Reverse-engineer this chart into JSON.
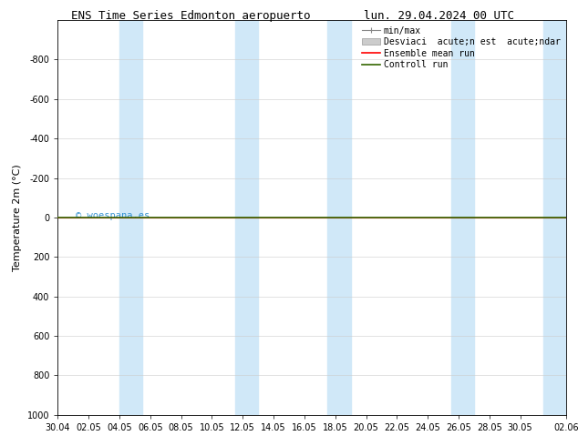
{
  "title_left": "ENS Time Series Edmonton aeropuerto",
  "title_right": "lun. 29.04.2024 00 UTC",
  "ylabel": "Temperature 2m (°C)",
  "ylim_bottom": 1000,
  "ylim_top": -1000,
  "yticks": [
    -800,
    -600,
    -400,
    -200,
    0,
    200,
    400,
    600,
    800,
    1000
  ],
  "xlim_start": 0,
  "xlim_end": 33,
  "xtick_labels": [
    "30.04",
    "02.05",
    "04.05",
    "06.05",
    "08.05",
    "10.05",
    "12.05",
    "14.05",
    "16.05",
    "18.05",
    "20.05",
    "22.05",
    "24.05",
    "26.05",
    "28.05",
    "30.05",
    "02.06"
  ],
  "xtick_positions": [
    0,
    2,
    4,
    6,
    8,
    10,
    12,
    14,
    16,
    18,
    20,
    22,
    24,
    26,
    28,
    30,
    33
  ],
  "shaded_bands": [
    [
      4.0,
      5.5
    ],
    [
      11.5,
      13.0
    ],
    [
      17.5,
      19.0
    ],
    [
      25.5,
      27.0
    ],
    [
      31.5,
      33.0
    ]
  ],
  "green_line_y": 0,
  "red_line_y": 0,
  "band_color": "#d0e8f8",
  "green_line_color": "#336600",
  "red_line_color": "#ff0000",
  "legend_label_minmax": "min/max",
  "legend_label_std": "Desviaci  acute;n est  acute;ndar",
  "legend_label_ensemble": "Ensemble mean run",
  "legend_label_control": "Controll run",
  "watermark": "© woespana.es",
  "bg_color": "#ffffff",
  "grid_color": "#cccccc",
  "title_fontsize": 9,
  "tick_fontsize": 7,
  "ylabel_fontsize": 8,
  "legend_fontsize": 7
}
